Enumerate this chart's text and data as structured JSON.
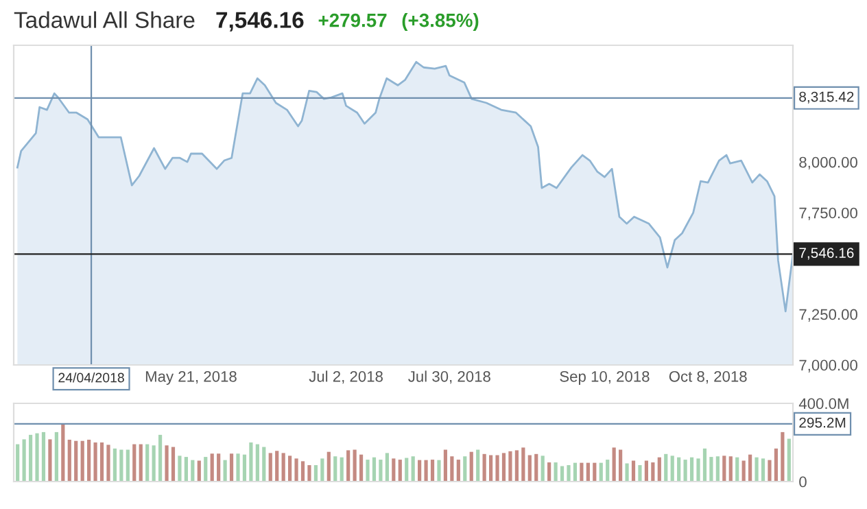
{
  "chart_data": [
    {
      "type": "area",
      "title": "Tadawul All Share",
      "annotations": [
        "7,546.16",
        "+279.57",
        "(+3.85%)"
      ],
      "x": [
        "2018-04-04",
        "2018-04-05",
        "2018-04-09",
        "2018-04-10",
        "2018-04-12",
        "2018-04-14",
        "2018-04-15",
        "2018-04-18",
        "2018-04-20",
        "2018-04-23",
        "2018-04-26",
        "2018-05-02",
        "2018-05-05",
        "2018-05-07",
        "2018-05-11",
        "2018-05-14",
        "2018-05-16",
        "2018-05-18",
        "2018-05-20",
        "2018-05-21",
        "2018-05-24",
        "2018-05-28",
        "2018-05-30",
        "2018-06-01",
        "2018-06-04",
        "2018-06-06",
        "2018-06-08",
        "2018-06-10",
        "2018-06-13",
        "2018-06-16",
        "2018-06-19",
        "2018-06-20",
        "2018-06-22",
        "2018-06-24",
        "2018-06-26",
        "2018-06-28",
        "2018-07-01",
        "2018-07-02",
        "2018-07-05",
        "2018-07-07",
        "2018-07-10",
        "2018-07-11",
        "2018-07-13",
        "2018-07-16",
        "2018-07-18",
        "2018-07-21",
        "2018-07-23",
        "2018-07-26",
        "2018-07-29",
        "2018-07-30",
        "2018-08-03",
        "2018-08-05",
        "2018-08-09",
        "2018-08-13",
        "2018-08-17",
        "2018-08-21",
        "2018-08-23",
        "2018-08-24",
        "2018-08-26",
        "2018-08-28",
        "2018-09-01",
        "2018-09-04",
        "2018-09-06",
        "2018-09-08",
        "2018-09-10",
        "2018-09-12",
        "2018-09-14",
        "2018-09-16",
        "2018-09-18",
        "2018-09-22",
        "2018-09-25",
        "2018-09-27",
        "2018-09-29",
        "2018-10-01",
        "2018-10-04",
        "2018-10-06",
        "2018-10-08",
        "2018-10-11",
        "2018-10-13",
        "2018-10-14",
        "2018-10-17",
        "2018-10-20",
        "2018-10-22",
        "2018-10-24",
        "2018-10-26",
        "2018-10-27",
        "2018-10-29",
        "2018-10-31"
      ],
      "series": [
        {
          "color": "#8fb4d2",
          "values": [
            7973,
            8054,
            8142,
            8270,
            8257,
            8338,
            8318,
            8243,
            8243,
            8210,
            8122,
            8122,
            7885,
            7932,
            8068,
            7966,
            8020,
            8020,
            8000,
            8041,
            8041,
            7966,
            8007,
            8020,
            8338,
            8338,
            8412,
            8378,
            8291,
            8257,
            8176,
            8203,
            8351,
            8345,
            8311,
            8318,
            8338,
            8277,
            8243,
            8189,
            8243,
            8311,
            8412,
            8378,
            8405,
            8493,
            8466,
            8460,
            8473,
            8426,
            8392,
            8311,
            8291,
            8257,
            8243,
            8176,
            8074,
            7872,
            7892,
            7872,
            7973,
            8034,
            8007,
            7953,
            7926,
            7966,
            7730,
            7696,
            7730,
            7696,
            7628,
            7480,
            7615,
            7649,
            7750,
            7905,
            7899,
            8007,
            8034,
            7993,
            8007,
            7899,
            7939,
            7905,
            7831,
            7514,
            7264,
            7546
          ]
        }
      ],
      "xlim": [
        "2018-04-03",
        "2018-10-31"
      ],
      "xticks": [
        {
          "value": "2018-05-21",
          "label": "May 21, 2018"
        },
        {
          "value": "2018-07-02",
          "label": "Jul 2, 2018"
        },
        {
          "value": "2018-07-30",
          "label": "Jul 30, 2018"
        },
        {
          "value": "2018-09-10",
          "label": "Sep 10, 2018"
        },
        {
          "value": "2018-10-08",
          "label": "Oct 8, 2018"
        }
      ],
      "ylim": [
        7000,
        8575
      ],
      "yticks": [
        {
          "value": 7000,
          "label": "7,000.00"
        },
        {
          "value": 7250,
          "label": "7,250.00"
        },
        {
          "value": 7750,
          "label": "7,750.00"
        },
        {
          "value": 8000,
          "label": "8,000.00"
        }
      ],
      "ref_lines": [
        {
          "axis": "x",
          "value": "2018-04-24",
          "label": "24/04/2018",
          "color": "#6f8fae"
        },
        {
          "axis": "y",
          "value": 8315.42,
          "label": "8,315.42",
          "color": "#6f8fae"
        },
        {
          "axis": "y",
          "value": 7546.16,
          "label": "7,546.16",
          "color": "#222222"
        }
      ]
    },
    {
      "type": "bar",
      "categories": [
        null,
        null,
        null,
        null,
        null,
        null,
        null,
        null,
        null,
        null,
        null,
        null,
        null,
        null,
        null,
        null,
        null,
        null,
        null,
        null,
        null,
        null,
        null,
        null,
        null,
        null,
        null,
        null,
        null,
        null,
        null,
        null,
        null,
        null,
        null,
        null,
        null,
        null,
        null,
        null,
        null,
        null,
        null,
        null,
        null,
        null,
        null,
        null,
        null,
        null,
        null,
        null,
        null,
        null,
        null,
        null,
        null,
        null,
        null,
        null,
        null,
        null,
        null,
        null,
        null,
        null,
        null,
        null,
        null,
        null,
        null,
        null,
        null,
        null,
        null,
        null,
        null,
        null,
        null,
        null,
        null,
        null,
        null,
        null,
        null,
        null,
        null,
        null,
        null,
        null,
        null,
        null,
        null,
        null,
        null,
        null,
        null,
        null,
        null,
        null,
        null,
        null,
        null,
        null,
        null,
        null,
        null,
        null,
        null,
        null,
        null,
        null,
        null,
        null,
        null,
        null,
        null,
        null,
        null,
        null
      ],
      "values": [
        191,
        216,
        239,
        247,
        253,
        216,
        253,
        295,
        214,
        208,
        208,
        214,
        200,
        200,
        188,
        169,
        163,
        163,
        191,
        191,
        191,
        185,
        239,
        185,
        177,
        132,
        126,
        110,
        107,
        126,
        143,
        143,
        110,
        143,
        143,
        138,
        200,
        191,
        177,
        146,
        157,
        146,
        132,
        118,
        104,
        84,
        84,
        118,
        152,
        129,
        124,
        160,
        163,
        138,
        112,
        124,
        112,
        146,
        118,
        112,
        121,
        129,
        110,
        110,
        112,
        110,
        163,
        129,
        112,
        129,
        152,
        163,
        141,
        135,
        135,
        146,
        155,
        160,
        174,
        135,
        141,
        132,
        98,
        98,
        79,
        84,
        96,
        96,
        96,
        96,
        96,
        112,
        174,
        163,
        93,
        107,
        84,
        107,
        98,
        124,
        141,
        132,
        124,
        112,
        124,
        118,
        169,
        126,
        129,
        132,
        129,
        124,
        107,
        138,
        124,
        118,
        110,
        169,
        253,
        219
      ],
      "colors": [
        "#a6d4b2",
        "#a6d4b2",
        "#a6d4b2",
        "#a6d4b2",
        "#a6d4b2",
        "#c48a82",
        "#a6d4b2",
        "#c48a82",
        "#c48a82",
        "#c48a82",
        "#c48a82",
        "#c48a82",
        "#c48a82",
        "#c48a82",
        "#c48a82",
        "#a6d4b2",
        "#a6d4b2",
        "#a6d4b2",
        "#c48a82",
        "#c48a82",
        "#a6d4b2",
        "#a6d4b2",
        "#a6d4b2",
        "#c48a82",
        "#c48a82",
        "#a6d4b2",
        "#a6d4b2",
        "#a6d4b2",
        "#c48a82",
        "#a6d4b2",
        "#c48a82",
        "#c48a82",
        "#a6d4b2",
        "#c48a82",
        "#a6d4b2",
        "#a6d4b2",
        "#a6d4b2",
        "#a6d4b2",
        "#a6d4b2",
        "#c48a82",
        "#c48a82",
        "#c48a82",
        "#c48a82",
        "#c48a82",
        "#c48a82",
        "#c48a82",
        "#a6d4b2",
        "#a6d4b2",
        "#c48a82",
        "#a6d4b2",
        "#a6d4b2",
        "#c48a82",
        "#c48a82",
        "#c48a82",
        "#a6d4b2",
        "#a6d4b2",
        "#a6d4b2",
        "#a6d4b2",
        "#c48a82",
        "#c48a82",
        "#a6d4b2",
        "#a6d4b2",
        "#c48a82",
        "#c48a82",
        "#c48a82",
        "#a6d4b2",
        "#c48a82",
        "#c48a82",
        "#c48a82",
        "#a6d4b2",
        "#c48a82",
        "#a6d4b2",
        "#c48a82",
        "#c48a82",
        "#c48a82",
        "#c48a82",
        "#c48a82",
        "#c48a82",
        "#c48a82",
        "#c48a82",
        "#c48a82",
        "#a6d4b2",
        "#c48a82",
        "#a6d4b2",
        "#a6d4b2",
        "#a6d4b2",
        "#a6d4b2",
        "#c48a82",
        "#c48a82",
        "#c48a82",
        "#a6d4b2",
        "#a6d4b2",
        "#c48a82",
        "#c48a82",
        "#a6d4b2",
        "#c48a82",
        "#a6d4b2",
        "#c48a82",
        "#c48a82",
        "#c48a82",
        "#a6d4b2",
        "#a6d4b2",
        "#a6d4b2",
        "#a6d4b2",
        "#a6d4b2",
        "#a6d4b2",
        "#a6d4b2",
        "#a6d4b2",
        "#a6d4b2",
        "#c48a82",
        "#c48a82",
        "#a6d4b2",
        "#c48a82",
        "#c48a82",
        "#a6d4b2",
        "#a6d4b2",
        "#c48a82",
        "#c48a82",
        "#c48a82",
        "#a6d4b2"
      ],
      "ylim": [
        0,
        400
      ],
      "yticks": [
        {
          "value": 0,
          "label": "0"
        },
        {
          "value": 400,
          "label": "400.0M"
        }
      ],
      "tick_labels": "y",
      "ref_lines": [
        {
          "axis": "y",
          "value": 295.2,
          "label": "295.2M",
          "color": "#6f8fae"
        }
      ]
    }
  ]
}
